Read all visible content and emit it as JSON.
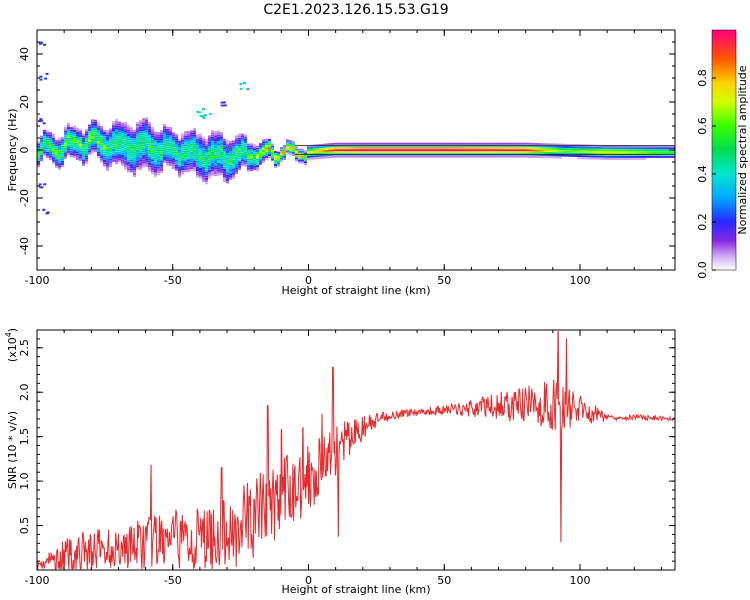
{
  "title": "C2E1.2023.126.15.53.G19",
  "chart_data": [
    {
      "type": "heatmap",
      "xlabel": "Height of straight line (km)",
      "ylabel": "Frequency (Hz)",
      "xlim": [
        -100,
        135
      ],
      "ylim": [
        -50,
        50
      ],
      "xticks": [
        "-100",
        "-50",
        "0",
        "50",
        "100"
      ],
      "yticks": [
        "40",
        "20",
        "0",
        "-20",
        "-40"
      ],
      "colorbar": {
        "label": "Normalized spectral amplitude",
        "ticks": [
          "0.0",
          "0.2",
          "0.4",
          "0.6",
          "0.8"
        ],
        "range": [
          0,
          1
        ]
      },
      "signal_band": [
        {
          "x": -100,
          "center": 0.0,
          "halfwidth": 4,
          "peak": 0.55
        },
        {
          "x": -90,
          "center": 1.5,
          "halfwidth": 5,
          "peak": 0.55
        },
        {
          "x": -80,
          "center": 3.5,
          "halfwidth": 5,
          "peak": 0.6
        },
        {
          "x": -70,
          "center": 2.0,
          "halfwidth": 7,
          "peak": 0.5
        },
        {
          "x": -60,
          "center": 1.0,
          "halfwidth": 8,
          "peak": 0.5
        },
        {
          "x": -50,
          "center": 0.5,
          "halfwidth": 6,
          "peak": 0.5
        },
        {
          "x": -40,
          "center": -2.5,
          "halfwidth": 7,
          "peak": 0.5
        },
        {
          "x": -30,
          "center": -3.0,
          "halfwidth": 7,
          "peak": 0.5
        },
        {
          "x": -20,
          "center": -1.5,
          "halfwidth": 4,
          "peak": 0.6
        },
        {
          "x": -10,
          "center": -1.0,
          "halfwidth": 2,
          "peak": 0.9
        },
        {
          "x": 0,
          "center": -1.0,
          "halfwidth": 2,
          "peak": 0.7
        },
        {
          "x": 10,
          "center": 0.0,
          "halfwidth": 2,
          "peak": 0.95
        },
        {
          "x": 20,
          "center": 0.0,
          "halfwidth": 2,
          "peak": 1.0
        },
        {
          "x": 50,
          "center": 0.0,
          "halfwidth": 2,
          "peak": 1.0
        },
        {
          "x": 80,
          "center": 0.0,
          "halfwidth": 2,
          "peak": 0.95
        },
        {
          "x": 95,
          "center": -0.5,
          "halfwidth": 2,
          "peak": 0.6
        },
        {
          "x": 110,
          "center": -1.0,
          "halfwidth": 2,
          "peak": 0.75
        },
        {
          "x": 135,
          "center": -1.0,
          "halfwidth": 2,
          "peak": 0.55
        }
      ],
      "scatter_blobs": [
        {
          "x": -99,
          "y": 44,
          "amp": 0.2
        },
        {
          "x": -98,
          "y": 31,
          "amp": 0.2
        },
        {
          "x": -99,
          "y": 12,
          "amp": 0.2
        },
        {
          "x": -98,
          "y": -15,
          "amp": 0.25
        },
        {
          "x": -97,
          "y": -26,
          "amp": 0.2
        },
        {
          "x": -40,
          "y": 16,
          "amp": 0.45
        },
        {
          "x": -38,
          "y": 14,
          "amp": 0.4
        },
        {
          "x": -24,
          "y": 27,
          "amp": 0.35
        },
        {
          "x": -32,
          "y": 20,
          "amp": 0.2
        }
      ]
    },
    {
      "type": "line",
      "xlabel": "Height of straight line (km)",
      "ylabel": "SNR (10 * v/v)",
      "yscale_label": "(x10",
      "yscale_exp": "4",
      "yscale_close": ")",
      "xlim": [
        -100,
        135
      ],
      "ylim": [
        0,
        2.7
      ],
      "xticks": [
        "-100",
        "-50",
        "0",
        "50",
        "100"
      ],
      "yticks": [
        "2.5",
        "2.0",
        "1.5",
        "1.0",
        "0.5"
      ],
      "color": "#e8282b",
      "envelope": [
        {
          "x": -100,
          "y": 0.05,
          "amp": 0.05
        },
        {
          "x": -90,
          "y": 0.15,
          "amp": 0.2
        },
        {
          "x": -80,
          "y": 0.22,
          "amp": 0.25
        },
        {
          "x": -70,
          "y": 0.25,
          "amp": 0.22
        },
        {
          "x": -60,
          "y": 0.3,
          "amp": 0.3
        },
        {
          "x": -50,
          "y": 0.33,
          "amp": 0.35
        },
        {
          "x": -40,
          "y": 0.35,
          "amp": 0.35
        },
        {
          "x": -30,
          "y": 0.4,
          "amp": 0.4
        },
        {
          "x": -20,
          "y": 0.6,
          "amp": 0.5
        },
        {
          "x": -10,
          "y": 0.8,
          "amp": 0.5
        },
        {
          "x": 0,
          "y": 1.05,
          "amp": 0.4
        },
        {
          "x": 10,
          "y": 1.35,
          "amp": 0.3
        },
        {
          "x": 20,
          "y": 1.6,
          "amp": 0.15
        },
        {
          "x": 30,
          "y": 1.74,
          "amp": 0.05
        },
        {
          "x": 40,
          "y": 1.78,
          "amp": 0.04
        },
        {
          "x": 50,
          "y": 1.8,
          "amp": 0.05
        },
        {
          "x": 60,
          "y": 1.82,
          "amp": 0.1
        },
        {
          "x": 70,
          "y": 1.85,
          "amp": 0.15
        },
        {
          "x": 80,
          "y": 1.85,
          "amp": 0.22
        },
        {
          "x": 90,
          "y": 1.85,
          "amp": 0.3
        },
        {
          "x": 100,
          "y": 1.8,
          "amp": 0.18
        },
        {
          "x": 110,
          "y": 1.72,
          "amp": 0.04
        },
        {
          "x": 120,
          "y": 1.72,
          "amp": 0.03
        },
        {
          "x": 135,
          "y": 1.7,
          "amp": 0.02
        }
      ],
      "spikes": [
        {
          "x": -58,
          "y": 1.18
        },
        {
          "x": -32,
          "y": 1.15
        },
        {
          "x": -15,
          "y": 1.85
        },
        {
          "x": -10,
          "y": 1.58
        },
        {
          "x": 9,
          "y": 2.28
        },
        {
          "x": 11,
          "y": 0.38
        },
        {
          "x": 92,
          "y": 2.68
        },
        {
          "x": 93,
          "y": 0.32
        },
        {
          "x": 95,
          "y": 2.6
        },
        {
          "x": -2,
          "y": 1.6
        },
        {
          "x": 5,
          "y": 1.75
        }
      ]
    }
  ]
}
